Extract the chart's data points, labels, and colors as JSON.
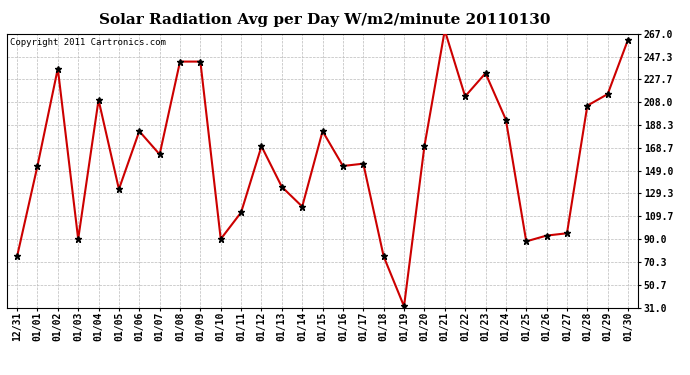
{
  "title": "Solar Radiation Avg per Day W/m2/minute 20110130",
  "copyright": "Copyright 2011 Cartronics.com",
  "x_labels": [
    "12/31",
    "01/01",
    "01/02",
    "01/03",
    "01/04",
    "01/05",
    "01/06",
    "01/07",
    "01/08",
    "01/09",
    "01/10",
    "01/11",
    "01/12",
    "01/13",
    "01/14",
    "01/15",
    "01/16",
    "01/17",
    "01/18",
    "01/19",
    "01/20",
    "01/21",
    "01/22",
    "01/23",
    "01/24",
    "01/25",
    "01/26",
    "01/27",
    "01/28",
    "01/29",
    "01/30"
  ],
  "y_values": [
    75.0,
    153.0,
    237.0,
    90.0,
    210.0,
    133.0,
    183.0,
    163.0,
    243.0,
    243.0,
    90.0,
    113.0,
    170.0,
    135.0,
    118.0,
    183.0,
    153.0,
    155.0,
    75.0,
    32.0,
    170.0,
    270.0,
    213.0,
    233.0,
    193.0,
    88.0,
    93.0,
    95.0,
    205.0,
    215.0,
    262.0
  ],
  "line_color": "#cc0000",
  "marker": "*",
  "marker_color": "#000000",
  "marker_size": 5,
  "line_width": 1.5,
  "y_ticks": [
    31.0,
    50.7,
    70.3,
    90.0,
    109.7,
    129.3,
    149.0,
    168.7,
    188.3,
    208.0,
    227.7,
    247.3,
    267.0
  ],
  "ylim": [
    31.0,
    267.0
  ],
  "background_color": "#ffffff",
  "grid_color": "#bbbbbb",
  "title_fontsize": 11,
  "copyright_fontsize": 6.5,
  "tick_fontsize": 7,
  "ytick_fontsize": 7
}
